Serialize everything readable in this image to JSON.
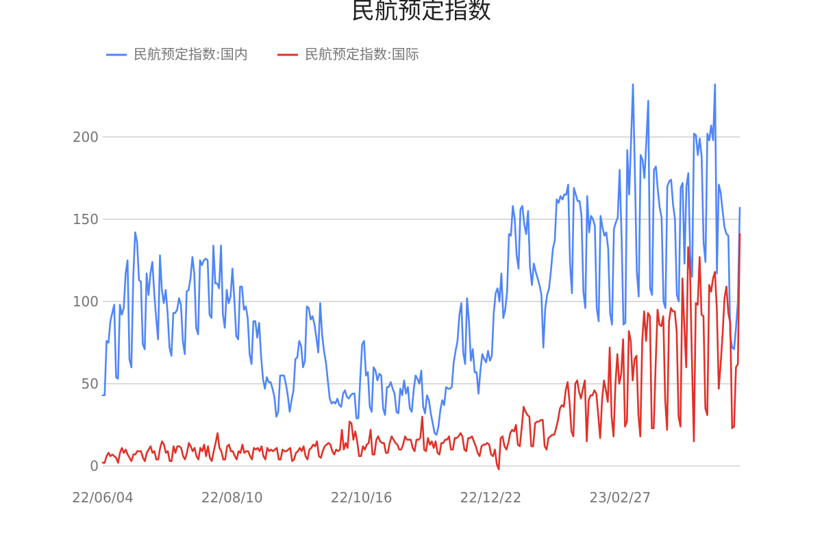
{
  "chart_data": {
    "type": "line",
    "title": "民航预定指数",
    "xlabel": "",
    "ylabel": "",
    "ylim": [
      0,
      232
    ],
    "yticks": [
      0,
      50,
      100,
      150,
      200
    ],
    "x_start": "22/06/04",
    "x_end": "23/04/30",
    "x_tick_labels": [
      "22/06/04",
      "22/08/10",
      "22/10/16",
      "22/12/22",
      "23/02/27"
    ],
    "grid": "horizontal",
    "legend_position": "top-left",
    "series": [
      {
        "name": "民航预定指数:国内",
        "color": "#4f86f7",
        "values": [
          43,
          43,
          76,
          75,
          88,
          93,
          98,
          54,
          53,
          98,
          92,
          96,
          117,
          125,
          65,
          60,
          115,
          142,
          136,
          113,
          112,
          74,
          71,
          117,
          104,
          117,
          124,
          105,
          90,
          77,
          128,
          107,
          99,
          107,
          93,
          72,
          67,
          93,
          93,
          95,
          102,
          98,
          76,
          68,
          106,
          107,
          114,
          127,
          117,
          84,
          80,
          125,
          122,
          125,
          126,
          125,
          92,
          90,
          134,
          111,
          111,
          108,
          134,
          92,
          84,
          107,
          99,
          103,
          120,
          101,
          79,
          77,
          109,
          109,
          95,
          97,
          90,
          68,
          62,
          88,
          88,
          78,
          87,
          67,
          53,
          47,
          54,
          51,
          51,
          47,
          42,
          30,
          33,
          55,
          55,
          55,
          50,
          43,
          33,
          40,
          46,
          65,
          66,
          76,
          73,
          60,
          64,
          97,
          96,
          89,
          91,
          86,
          78,
          69,
          99,
          80,
          70,
          63,
          52,
          41,
          38,
          39,
          38,
          41,
          37,
          36,
          44,
          46,
          42,
          41,
          43,
          44,
          44,
          29,
          29,
          53,
          74,
          76,
          55,
          57,
          36,
          33,
          60,
          58,
          52,
          56,
          55,
          35,
          31,
          48,
          48,
          51,
          47,
          44,
          33,
          32,
          47,
          43,
          52,
          44,
          48,
          35,
          33,
          46,
          55,
          53,
          50,
          58,
          36,
          32,
          43,
          40,
          32,
          26,
          20,
          19,
          24,
          34,
          40,
          37,
          48,
          47,
          47,
          48,
          63,
          70,
          76,
          92,
          99,
          69,
          62,
          102,
          88,
          64,
          71,
          57,
          57,
          44,
          58,
          68,
          65,
          63,
          70,
          64,
          67,
          93,
          105,
          108,
          100,
          117,
          90,
          95,
          106,
          141,
          140,
          158,
          150,
          128,
          120,
          156,
          158,
          147,
          141,
          155,
          121,
          110,
          123,
          118,
          114,
          110,
          104,
          72,
          96,
          104,
          108,
          119,
          132,
          137,
          162,
          160,
          164,
          162,
          165,
          165,
          171,
          123,
          105,
          169,
          165,
          161,
          161,
          152,
          106,
          96,
          164,
          142,
          152,
          150,
          146,
          96,
          88,
          152,
          145,
          140,
          142,
          132,
          93,
          86,
          144,
          148,
          151,
          180,
          140,
          86,
          87,
          192,
          165,
          198,
          232,
          178,
          118,
          103,
          189,
          186,
          175,
          197,
          222,
          108,
          104,
          180,
          182,
          168,
          157,
          151,
          100,
          96,
          170,
          173,
          174,
          159,
          150,
          104,
          100,
          169,
          172,
          123,
          170,
          178,
          128,
          115,
          202,
          201,
          189,
          199,
          188,
          136,
          124,
          202,
          198,
          207,
          198,
          232,
          117,
          171,
          166,
          155,
          145,
          141,
          140,
          79,
          72,
          71,
          84,
          100,
          157
        ]
      },
      {
        "name": "民航预定指数:国际",
        "color": "#e03127",
        "values": [
          2,
          2,
          6,
          8,
          6,
          7,
          6,
          5,
          2,
          8,
          11,
          8,
          10,
          7,
          5,
          3,
          7,
          7,
          9,
          9,
          9,
          5,
          3,
          8,
          10,
          12,
          8,
          9,
          4,
          4,
          11,
          15,
          13,
          8,
          9,
          3,
          3,
          12,
          8,
          12,
          12,
          11,
          6,
          4,
          8,
          14,
          12,
          9,
          11,
          6,
          4,
          11,
          9,
          13,
          6,
          12,
          5,
          3,
          9,
          14,
          20,
          11,
          9,
          4,
          4,
          12,
          13,
          9,
          9,
          6,
          4,
          9,
          8,
          13,
          8,
          9,
          9,
          6,
          4,
          11,
          10,
          11,
          9,
          12,
          6,
          4,
          11,
          9,
          10,
          9,
          10,
          11,
          4,
          4,
          10,
          9,
          9,
          10,
          11,
          3,
          4,
          8,
          9,
          11,
          9,
          12,
          6,
          4,
          10,
          11,
          13,
          12,
          15,
          6,
          5,
          9,
          12,
          13,
          14,
          13,
          9,
          7,
          10,
          9,
          10,
          22,
          10,
          14,
          11,
          27,
          26,
          16,
          21,
          15,
          6,
          6,
          12,
          10,
          13,
          14,
          22,
          7,
          7,
          16,
          18,
          15,
          14,
          14,
          8,
          8,
          14,
          18,
          16,
          14,
          13,
          10,
          10,
          13,
          18,
          16,
          16,
          16,
          11,
          9,
          16,
          16,
          17,
          30,
          10,
          9,
          17,
          13,
          15,
          11,
          15,
          8,
          7,
          14,
          14,
          16,
          16,
          18,
          10,
          10,
          17,
          17,
          18,
          20,
          18,
          10,
          9,
          17,
          17,
          18,
          15,
          12,
          8,
          6,
          12,
          13,
          13,
          14,
          13,
          7,
          6,
          10,
          1,
          -2,
          17,
          18,
          12,
          10,
          14,
          20,
          22,
          21,
          25,
          13,
          12,
          23,
          36,
          33,
          31,
          30,
          12,
          12,
          26,
          27,
          27,
          28,
          28,
          12,
          10,
          17,
          18,
          19,
          19,
          23,
          28,
          35,
          37,
          36,
          46,
          51,
          39,
          21,
          18,
          50,
          52,
          45,
          41,
          47,
          52,
          15,
          40,
          43,
          43,
          46,
          44,
          31,
          17,
          40,
          52,
          46,
          39,
          72,
          30,
          18,
          50,
          68,
          50,
          56,
          77,
          24,
          27,
          82,
          76,
          52,
          65,
          67,
          31,
          18,
          76,
          94,
          76,
          93,
          91,
          23,
          23,
          61,
          95,
          86,
          85,
          91,
          40,
          22,
          88,
          96,
          94,
          94,
          82,
          30,
          24,
          114,
          85,
          60,
          133,
          118,
          63,
          15,
          99,
          98,
          127,
          92,
          91,
          35,
          31,
          110,
          106,
          114,
          118,
          95,
          47,
          62,
          80,
          102,
          109,
          93,
          87,
          23,
          24,
          60,
          62,
          141
        ]
      }
    ]
  }
}
